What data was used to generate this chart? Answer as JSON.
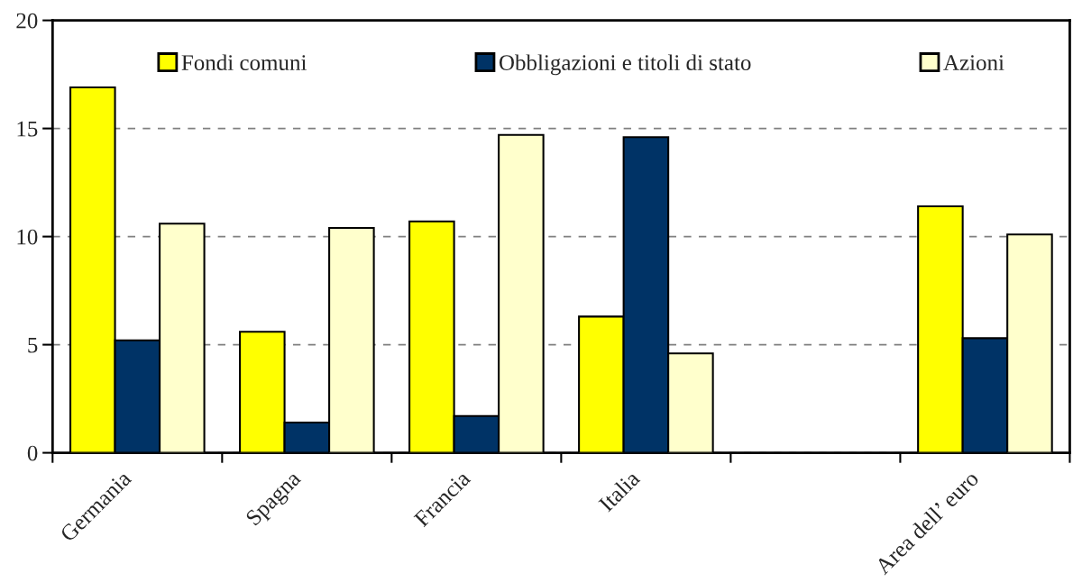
{
  "chart_data": {
    "type": "bar",
    "categories": [
      "Germania",
      "Spagna",
      "Francia",
      "Italia",
      null,
      "Area dell’ euro"
    ],
    "series": [
      {
        "name": "Fondi comuni",
        "color": "#ffff00",
        "values": [
          16.9,
          5.6,
          10.7,
          6.3,
          null,
          11.4
        ]
      },
      {
        "name": "Obbligazioni e titoli di stato",
        "color": "#003366",
        "values": [
          5.2,
          1.4,
          1.7,
          14.6,
          null,
          5.3
        ]
      },
      {
        "name": "Azioni",
        "color": "#ffffcc",
        "values": [
          10.6,
          10.4,
          14.7,
          4.6,
          null,
          10.1
        ]
      }
    ],
    "ylim": [
      0,
      20
    ],
    "yticks": [
      0,
      5,
      10,
      15,
      20
    ],
    "grid": "y",
    "legend": "top"
  }
}
